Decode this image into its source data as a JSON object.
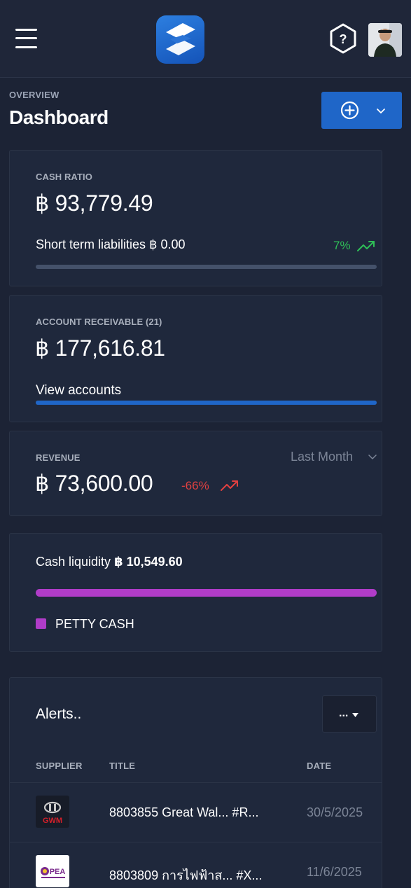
{
  "header": {
    "menu_icon": "hamburger-icon",
    "logo_icon": "app-logo",
    "help_icon": "help-circle-icon",
    "avatar_icon": "user-avatar"
  },
  "page": {
    "breadcrumb": "OVERVIEW",
    "title": "Dashboard"
  },
  "actions": {
    "add_icon": "plus-circle-icon",
    "dropdown_icon": "chevron-down-icon"
  },
  "cash_ratio": {
    "label": "CASH RATIO",
    "value": "฿ 93,779.49",
    "liabilities_text": "Short term liabilities ฿ 0.00",
    "change": "7%",
    "trend_icon": "trend-up-icon",
    "bar_fill_percent": 0
  },
  "receivable": {
    "label": "ACCOUNT RECEIVABLE (21)",
    "value": "฿ 177,616.81",
    "link": "View accounts",
    "bar_fill_percent": 100
  },
  "revenue": {
    "label": "REVENUE",
    "value": "฿ 73,600.00",
    "change": "-66%",
    "period": "Last Month",
    "trend_icon": "trend-up-icon"
  },
  "liquidity": {
    "label": "Cash liquidity",
    "amount": "฿ 10,549.60",
    "legend": "PETTY CASH",
    "bar_fill_percent": 100,
    "color": "#b03cc8"
  },
  "alerts": {
    "title": "Alerts..",
    "menu_label": "...",
    "columns": [
      "SUPPLIER",
      "TITLE",
      "DATE"
    ],
    "rows": [
      {
        "supplier_logo": "GWM",
        "title": "8803855 Great Wal... #R...",
        "date": "30/5/2025"
      },
      {
        "supplier_logo": "PEA",
        "title": "8803809 การไฟฟ้าส... #X...",
        "date": "11/6/2025"
      }
    ]
  },
  "colors": {
    "accent": "#1f66c8",
    "positive": "#2fbf57",
    "negative": "#e04040",
    "background": "#1c2335",
    "card": "#1f283c"
  }
}
